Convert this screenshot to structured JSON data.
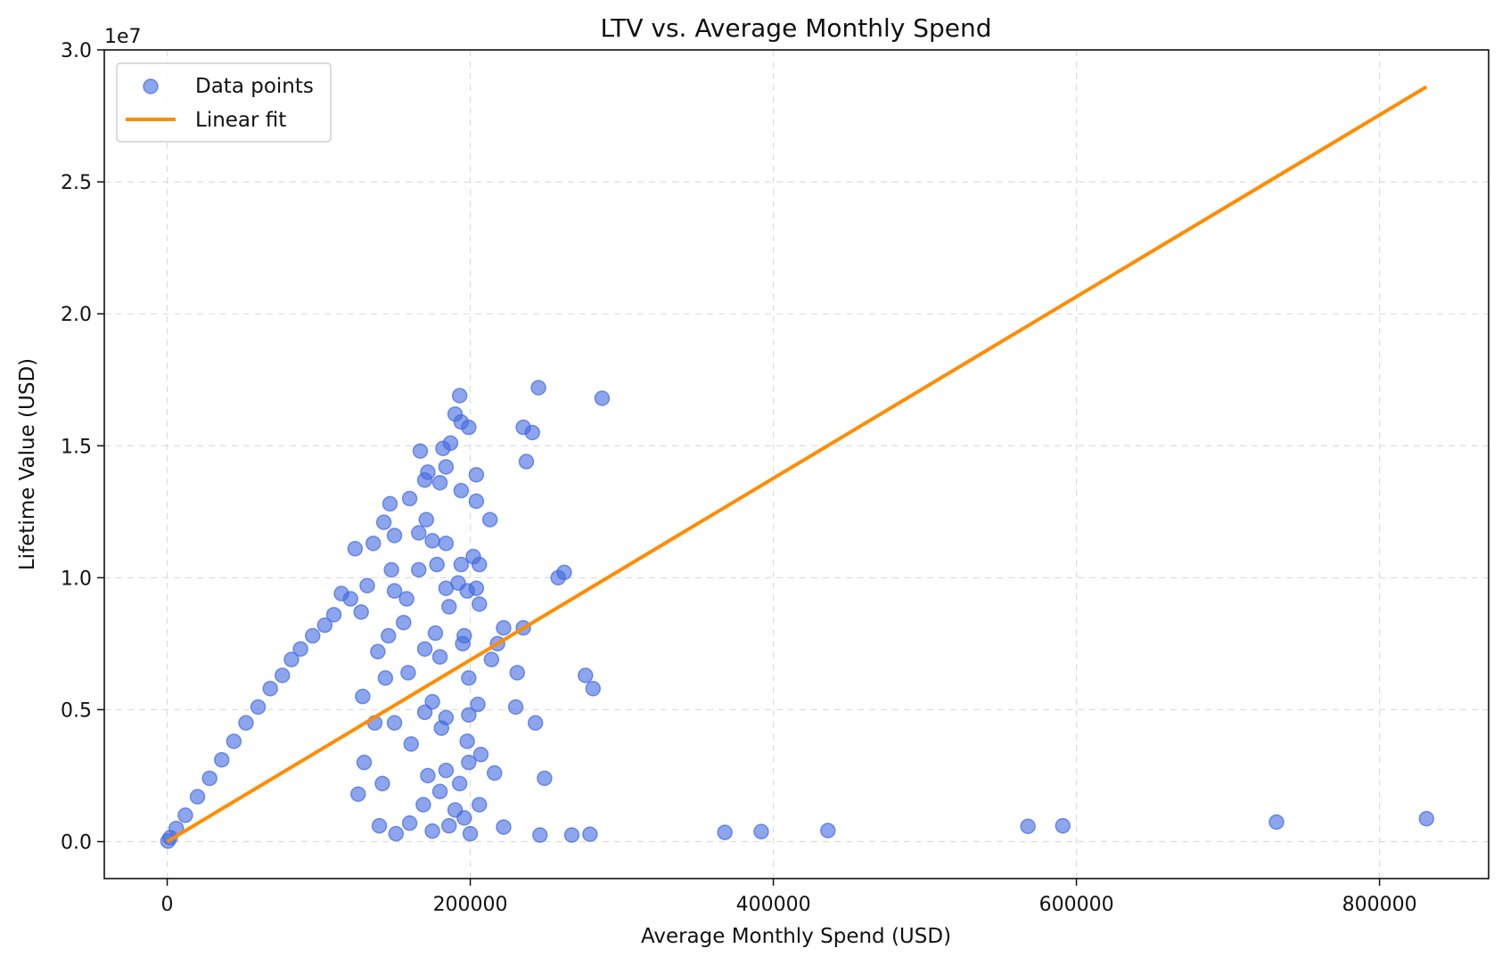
{
  "chart_data": {
    "type": "scatter",
    "title": "LTV vs. Average Monthly Spend",
    "xlabel": "Average Monthly Spend (USD)",
    "ylabel": "Lifetime Value (USD)",
    "y_offset_text": "1e7",
    "xlim": [
      -41500,
      872000
    ],
    "ylim": [
      -1400000,
      30000000
    ],
    "x_ticks": [
      0,
      200000,
      400000,
      600000,
      800000
    ],
    "x_tick_labels": [
      "0",
      "200000",
      "400000",
      "600000",
      "800000"
    ],
    "y_ticks": [
      0,
      5000000,
      10000000,
      15000000,
      20000000,
      25000000,
      30000000
    ],
    "y_tick_labels": [
      "0.0",
      "0.5",
      "1.0",
      "1.5",
      "2.0",
      "2.5",
      "3.0"
    ],
    "grid": true,
    "legend_position": "top-left",
    "series": [
      {
        "name": "Data points",
        "kind": "scatter",
        "color": "#4169e1",
        "points": [
          [
            245000,
            17200000
          ],
          [
            193000,
            16900000
          ],
          [
            287000,
            16800000
          ],
          [
            190000,
            16200000
          ],
          [
            194000,
            15900000
          ],
          [
            199000,
            15700000
          ],
          [
            235000,
            15700000
          ],
          [
            241000,
            15500000
          ],
          [
            187000,
            15100000
          ],
          [
            167000,
            14800000
          ],
          [
            182000,
            14900000
          ],
          [
            237000,
            14400000
          ],
          [
            184000,
            14200000
          ],
          [
            172000,
            14000000
          ],
          [
            204000,
            13900000
          ],
          [
            170000,
            13700000
          ],
          [
            180000,
            13600000
          ],
          [
            194000,
            13300000
          ],
          [
            204000,
            12900000
          ],
          [
            147000,
            12800000
          ],
          [
            160000,
            13000000
          ],
          [
            213000,
            12200000
          ],
          [
            143000,
            12100000
          ],
          [
            171000,
            12200000
          ],
          [
            166000,
            11700000
          ],
          [
            150000,
            11600000
          ],
          [
            175000,
            11400000
          ],
          [
            184000,
            11300000
          ],
          [
            136000,
            11300000
          ],
          [
            124000,
            11100000
          ],
          [
            202000,
            10800000
          ],
          [
            178000,
            10500000
          ],
          [
            262000,
            10200000
          ],
          [
            258000,
            10000000
          ],
          [
            206000,
            10500000
          ],
          [
            194000,
            10500000
          ],
          [
            166000,
            10300000
          ],
          [
            148000,
            10300000
          ],
          [
            192000,
            9800000
          ],
          [
            184000,
            9600000
          ],
          [
            204000,
            9600000
          ],
          [
            150000,
            9500000
          ],
          [
            132000,
            9700000
          ],
          [
            198000,
            9500000
          ],
          [
            158000,
            9200000
          ],
          [
            186000,
            8900000
          ],
          [
            206000,
            9000000
          ],
          [
            222000,
            8100000
          ],
          [
            235000,
            8100000
          ],
          [
            196000,
            7800000
          ],
          [
            177000,
            7900000
          ],
          [
            146000,
            7800000
          ],
          [
            218000,
            7500000
          ],
          [
            195000,
            7500000
          ],
          [
            170000,
            7300000
          ],
          [
            214000,
            6900000
          ],
          [
            180000,
            7000000
          ],
          [
            231000,
            6400000
          ],
          [
            276000,
            6300000
          ],
          [
            281000,
            5800000
          ],
          [
            199000,
            6200000
          ],
          [
            159000,
            6400000
          ],
          [
            205000,
            5200000
          ],
          [
            230000,
            5100000
          ],
          [
            175000,
            5300000
          ],
          [
            243000,
            4500000
          ],
          [
            199000,
            4800000
          ],
          [
            184000,
            4700000
          ],
          [
            170000,
            4900000
          ],
          [
            150000,
            4500000
          ],
          [
            198000,
            3800000
          ],
          [
            181000,
            4300000
          ],
          [
            207000,
            3300000
          ],
          [
            161000,
            3700000
          ],
          [
            199000,
            3000000
          ],
          [
            249000,
            2400000
          ],
          [
            216000,
            2600000
          ],
          [
            184000,
            2700000
          ],
          [
            172000,
            2500000
          ],
          [
            193000,
            2200000
          ],
          [
            180000,
            1900000
          ],
          [
            206000,
            1400000
          ],
          [
            169000,
            1400000
          ],
          [
            190000,
            1200000
          ],
          [
            222000,
            550000
          ],
          [
            246000,
            250000
          ],
          [
            267000,
            250000
          ],
          [
            279000,
            280000
          ],
          [
            368000,
            350000
          ],
          [
            392000,
            380000
          ],
          [
            436000,
            420000
          ],
          [
            568000,
            580000
          ],
          [
            591000,
            600000
          ],
          [
            732000,
            740000
          ],
          [
            831000,
            870000
          ],
          [
            196000,
            900000
          ],
          [
            160000,
            700000
          ],
          [
            186000,
            600000
          ],
          [
            175000,
            400000
          ],
          [
            200000,
            300000
          ],
          [
            151000,
            300000
          ],
          [
            140000,
            600000
          ],
          [
            130000,
            3000000
          ],
          [
            142000,
            2200000
          ],
          [
            126000,
            1800000
          ],
          [
            137000,
            4500000
          ],
          [
            129000,
            5500000
          ],
          [
            144000,
            6200000
          ],
          [
            139000,
            7200000
          ],
          [
            156000,
            8300000
          ],
          [
            128000,
            8700000
          ],
          [
            115000,
            9400000
          ],
          [
            121000,
            9200000
          ],
          [
            110000,
            8600000
          ],
          [
            104000,
            8200000
          ],
          [
            96000,
            7800000
          ],
          [
            88000,
            7300000
          ],
          [
            82000,
            6900000
          ],
          [
            76000,
            6300000
          ],
          [
            68000,
            5800000
          ],
          [
            60000,
            5100000
          ],
          [
            52000,
            4500000
          ],
          [
            44000,
            3800000
          ],
          [
            36000,
            3100000
          ],
          [
            28000,
            2400000
          ],
          [
            20000,
            1700000
          ],
          [
            12000,
            1000000
          ],
          [
            6000,
            500000
          ],
          [
            2000,
            150000
          ],
          [
            500,
            20000
          ]
        ]
      },
      {
        "name": "Linear fit",
        "kind": "line",
        "color": "#ff8c00",
        "points": [
          [
            0,
            0
          ],
          [
            831000,
            28600000
          ]
        ]
      }
    ]
  }
}
